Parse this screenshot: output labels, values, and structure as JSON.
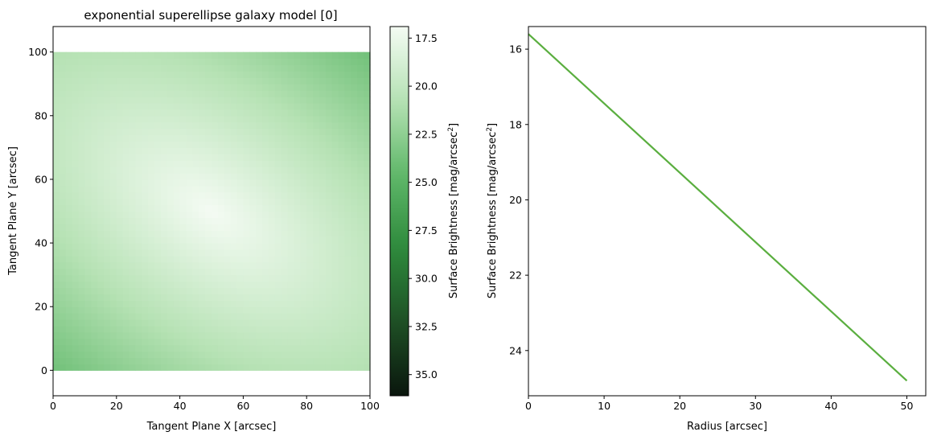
{
  "chart_data": [
    {
      "type": "heatmap",
      "title": "exponential superellipse galaxy model [0]",
      "xlabel": "Tangent Plane X [arcsec]",
      "ylabel": "Tangent Plane Y [arcsec]",
      "xlim": [
        0,
        100
      ],
      "ylim": [
        -8,
        108
      ],
      "image_extent": {
        "x": [
          0,
          100
        ],
        "y": [
          0,
          100
        ]
      },
      "xticks": [
        "0",
        "20",
        "40",
        "60",
        "80",
        "100"
      ],
      "yticks": [
        "0",
        "20",
        "40",
        "60",
        "80",
        "100"
      ],
      "center": [
        50,
        50
      ],
      "position_angle_deg": 35,
      "axis_ratio": 0.55,
      "peak_value": 16.9,
      "edge_value": 36.1,
      "colormap": [
        "#0a160d",
        "#1e5025",
        "#2e8a3c",
        "#60b86a",
        "#b6e2b4",
        "#f4fbf3"
      ],
      "colorbar": {
        "label": "Surface Brightness [mag/arcsec",
        "label_sup": "2",
        "label_end": "]",
        "range": [
          16.9,
          36.1
        ],
        "ticks": [
          "17.5",
          "20.0",
          "22.5",
          "25.0",
          "27.5",
          "30.0",
          "32.5",
          "35.0"
        ],
        "inverted": true
      },
      "grid": false
    },
    {
      "type": "line",
      "title": "",
      "xlabel": "Radius [arcsec]",
      "ylabel": "Surface Brightness [mag/arcsec",
      "ylabel_sup": "2",
      "ylabel_end": "]",
      "xlim": [
        0,
        52.5
      ],
      "ylim": [
        25.2,
        15.4
      ],
      "y_inverted": true,
      "xticks": [
        "0",
        "10",
        "20",
        "30",
        "40",
        "50"
      ],
      "yticks": [
        "16",
        "18",
        "20",
        "22",
        "24"
      ],
      "series": [
        {
          "x": [
            0,
            50
          ],
          "y": [
            15.6,
            24.8
          ],
          "color": "#5aae3f"
        }
      ],
      "grid": false
    }
  ]
}
